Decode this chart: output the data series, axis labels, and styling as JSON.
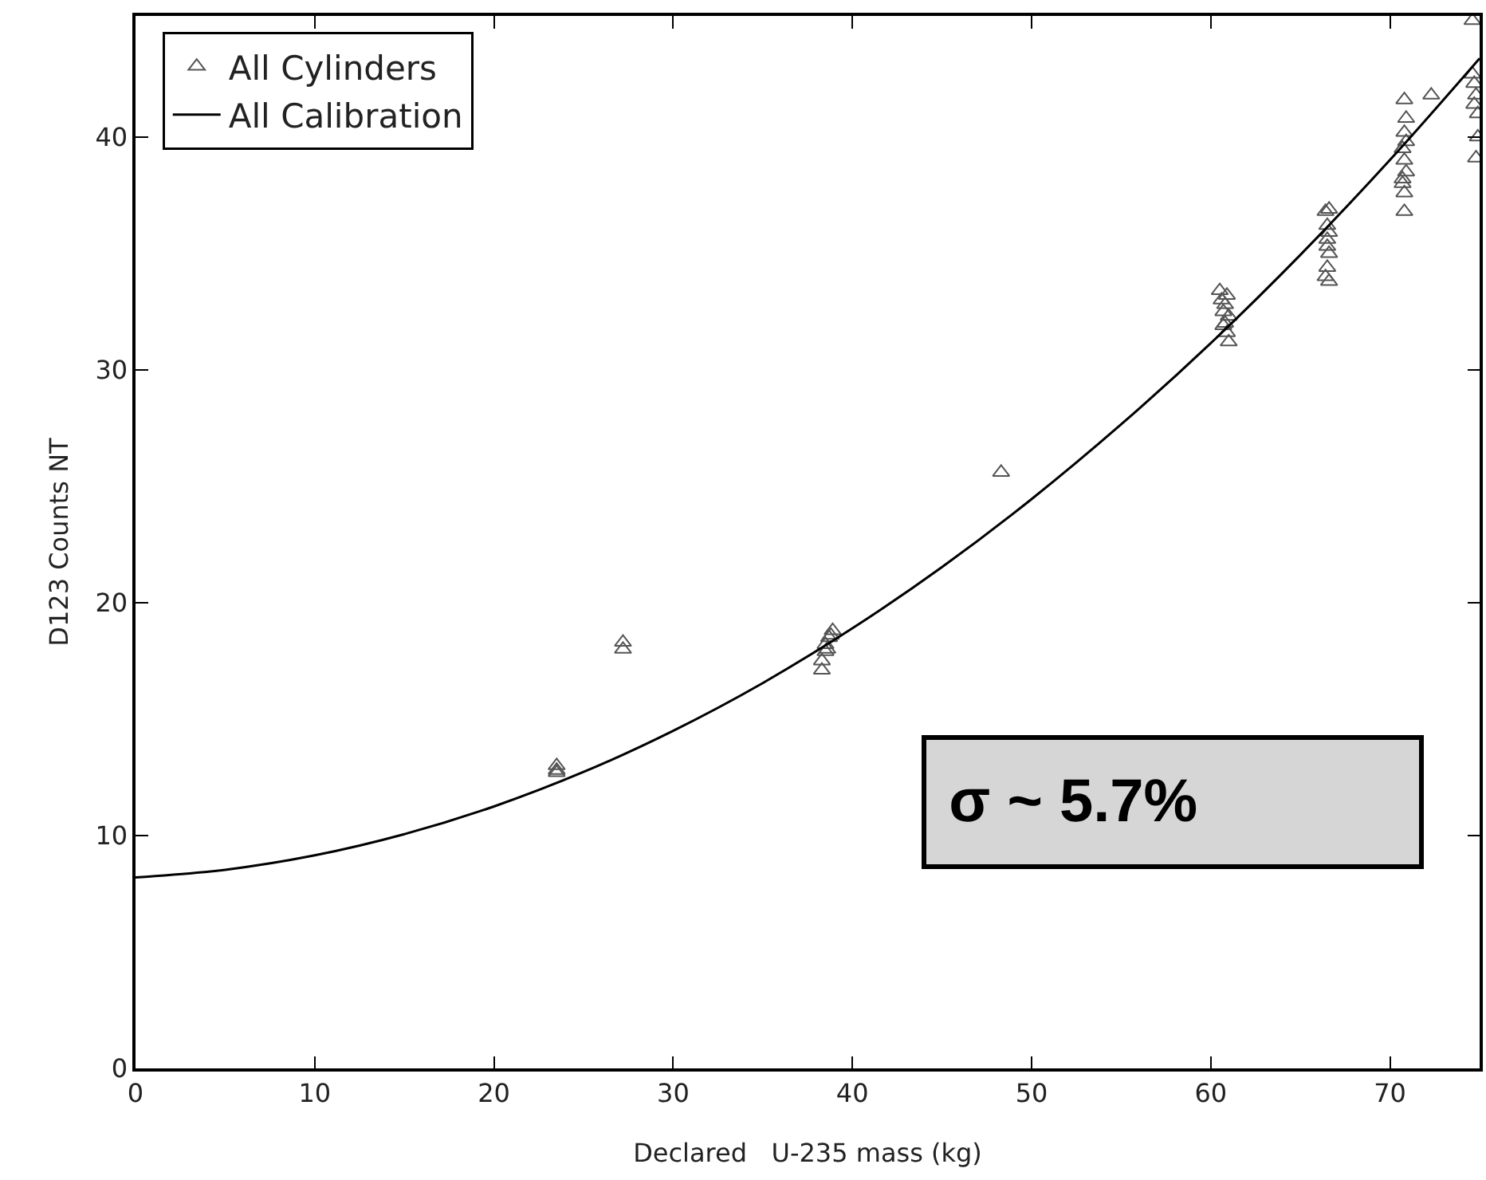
{
  "chart_data": {
    "type": "scatter",
    "xlabel": "Declared   U-235 mass (kg)",
    "ylabel": "D123 Counts NT",
    "xlim": [
      0,
      75
    ],
    "ylim": [
      0,
      45.2
    ],
    "xticks": [
      0,
      10,
      20,
      30,
      40,
      50,
      60,
      70
    ],
    "yticks": [
      0,
      10,
      20,
      30,
      40
    ],
    "grid": false,
    "legend": "top left",
    "marker": "triangle",
    "annotations": [
      "σ ~ 5.7%"
    ],
    "series": [
      {
        "name": "All Cylinders",
        "color": "#555555",
        "x": [
          23.5,
          23.5,
          23.5,
          27.2,
          27.2,
          38.3,
          38.3,
          38.5,
          38.5,
          38.7,
          38.9,
          38.8,
          38.6,
          48.3,
          60.5,
          60.6,
          60.7,
          60.8,
          60.9,
          61.0,
          60.8,
          60.7,
          60.9,
          61.0,
          66.4,
          66.6,
          66.5,
          66.5,
          66.6,
          66.5,
          66.4,
          66.6,
          66.5,
          66.6,
          70.8,
          70.9,
          70.8,
          70.7,
          70.8,
          70.9,
          70.7,
          70.8,
          70.8,
          70.9,
          70.7,
          72.3,
          74.6,
          74.6,
          74.7,
          74.8,
          74.7,
          74.9,
          74.8,
          74.9
        ],
        "values": [
          13.0,
          12.8,
          12.7,
          18.3,
          18.0,
          17.1,
          17.5,
          17.9,
          18.2,
          18.5,
          18.8,
          18.6,
          18.0,
          25.6,
          33.4,
          33.0,
          32.5,
          32.0,
          31.6,
          31.2,
          32.8,
          31.9,
          33.2,
          32.3,
          36.8,
          36.9,
          36.2,
          35.6,
          35.0,
          34.4,
          34.0,
          33.8,
          35.3,
          35.9,
          41.6,
          40.8,
          40.2,
          39.5,
          39.0,
          38.5,
          38.0,
          37.6,
          36.8,
          39.8,
          38.2,
          41.8,
          45.0,
          42.7,
          42.3,
          41.8,
          41.4,
          41.0,
          39.1,
          40.0
        ]
      },
      {
        "name": "All Calibration",
        "type": "line",
        "color": "#000000",
        "line_style": "solid",
        "marker": "none",
        "x": [
          0,
          5,
          10,
          15,
          20,
          25,
          30,
          35,
          40,
          45,
          50,
          55,
          60,
          65,
          70,
          75
        ],
        "values": [
          8.2,
          8.53,
          9.15,
          10.06,
          11.25,
          12.73,
          14.5,
          16.55,
          18.9,
          21.53,
          24.45,
          27.66,
          31.15,
          34.94,
          39.02,
          43.38
        ]
      }
    ]
  }
}
